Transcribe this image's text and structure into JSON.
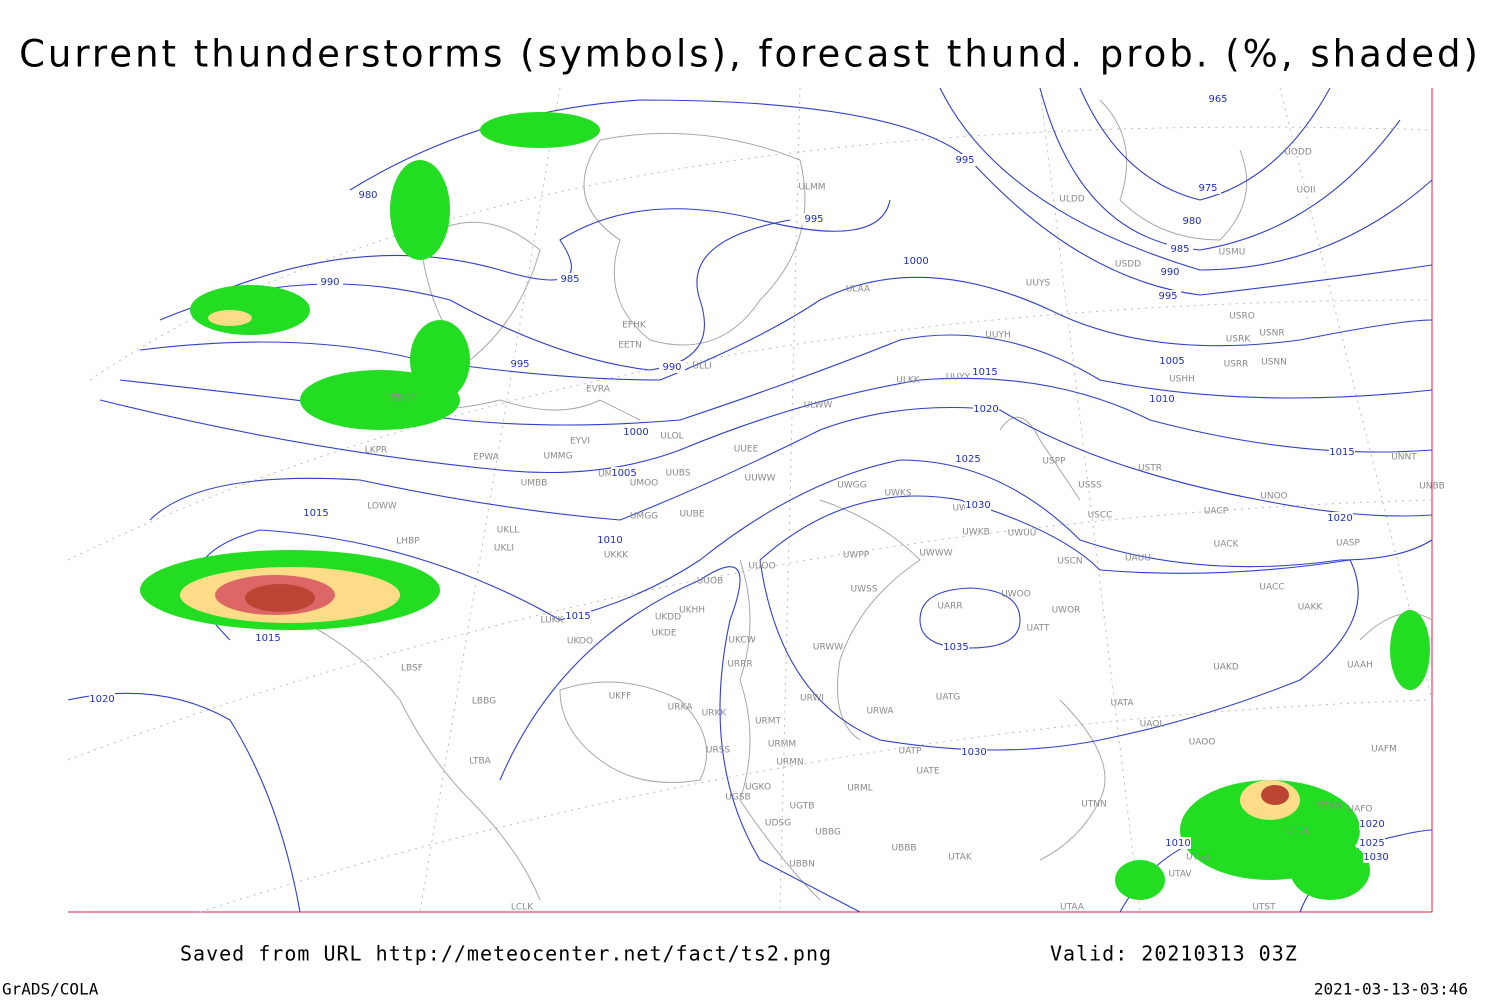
{
  "header": {
    "title": "Current thunderstorms (symbols), forecast thund. prob. (%, shaded)"
  },
  "footer": {
    "saved": "Saved from URL http://meteocenter.net/fact/ts2.png",
    "valid": "Valid: 20210313 03Z",
    "credit": "GrADS/COLA",
    "timestamp": "2021-03-13-03:46"
  },
  "isobar_labels": [
    965,
    995,
    975,
    980,
    995,
    980,
    985,
    990,
    985,
    1000,
    990,
    995,
    990,
    995,
    1005,
    1010,
    1015,
    1020,
    1000,
    1015,
    1005,
    1025,
    1030,
    1015,
    1020,
    1010,
    1015,
    1015,
    1035,
    1020,
    1030,
    1020,
    1010,
    1025,
    1030
  ],
  "stations": [
    "ULMM",
    "ULDD",
    "UODD",
    "UOII",
    "USDD",
    "USMU",
    "ULAA",
    "UUYS",
    "USRO",
    "USRK",
    "USNR",
    "UUYH",
    "USRR",
    "USNN",
    "USHH",
    "ULWW",
    "ULKK",
    "UUYY",
    "EFHK",
    "EETN",
    "ULLI",
    "EVRA",
    "ULOL",
    "UUEE",
    "EYVI",
    "UMMG",
    "EPWA",
    "UMMS",
    "UMOO",
    "UUBS",
    "UUWW",
    "UWGG",
    "UWKS",
    "UMBB",
    "UMGG",
    "UUBE",
    "UWKE",
    "UWKB",
    "UWUU",
    "USPP",
    "USTR",
    "USSS",
    "USCC",
    "UNOO",
    "UACP",
    "UNBB",
    "UNNT",
    "LOWW",
    "LKPR",
    "EDDT",
    "UKLL",
    "UKLI",
    "LHBP",
    "UKKK",
    "UUOO",
    "UWPP",
    "UWWW",
    "USCN",
    "UAUU",
    "UACK",
    "UASP",
    "UUOB",
    "UWSS",
    "UARR",
    "UWOO",
    "UWOR",
    "UATT",
    "UACC",
    "UAKK",
    "LUKK",
    "UKHH",
    "UKDD",
    "UKDE",
    "UKOO",
    "UKCW",
    "URWW",
    "UKFF",
    "URRR",
    "LBSF",
    "LBBG",
    "URKA",
    "URKK",
    "URMT",
    "URWI",
    "URWA",
    "UATG",
    "UATA",
    "UAOL",
    "UAOO",
    "UATP",
    "UATE",
    "UAKD",
    "UAAH",
    "UAFM",
    "UAFO",
    "UTKN",
    "UTDL",
    "URSS",
    "URMM",
    "URMN",
    "URML",
    "UGKO",
    "UGSB",
    "UGTB",
    "UDSG",
    "UBBG",
    "UBBB",
    "UBBN",
    "UTAK",
    "UTNN",
    "UTSB",
    "UTAV",
    "UTAA",
    "UTST",
    "LTBA",
    "LCLK"
  ]
}
